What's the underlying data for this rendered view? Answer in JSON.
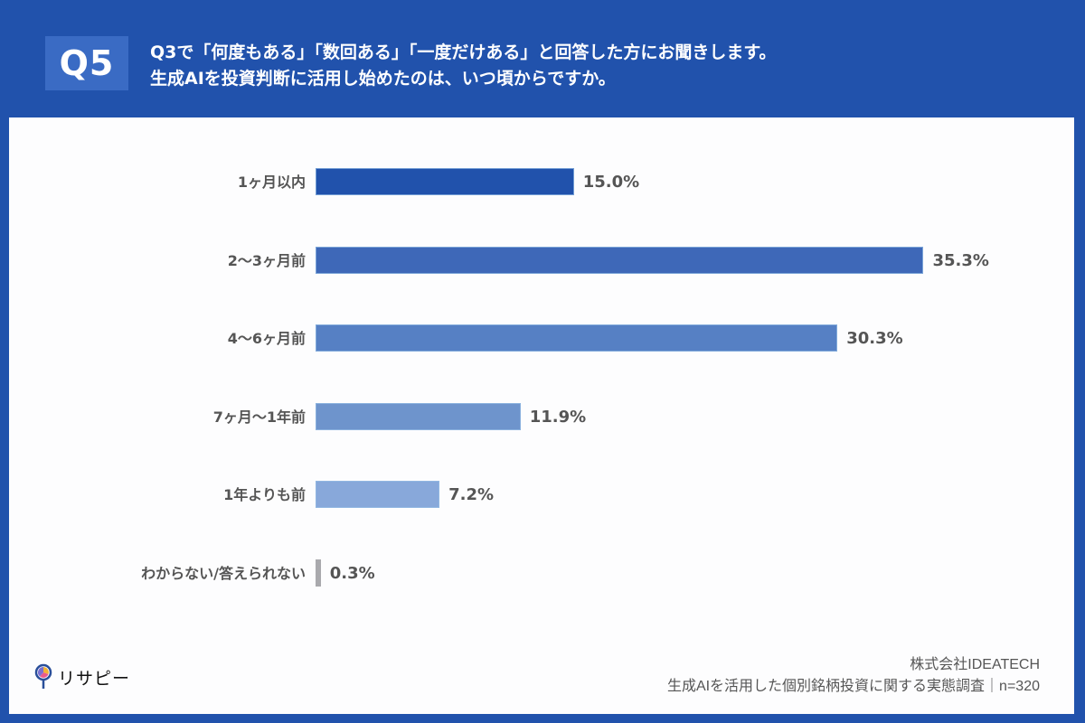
{
  "header": {
    "badge": "Q5",
    "question_line1": "Q3で「何度もある」「数回ある」「一度だけある」と回答した方にお聞きします。",
    "question_line2": "生成AIを投資判断に活用し始めたのは、いつ頃からですか。"
  },
  "chart_data": {
    "type": "bar",
    "orientation": "horizontal",
    "title": "生成AIを投資判断に活用し始めたのは、いつ頃からですか。",
    "xlabel": "",
    "ylabel": "",
    "unit": "%",
    "categories": [
      "1ヶ月以内",
      "2〜3ヶ月前",
      "4〜6ヶ月前",
      "7ヶ月〜1年前",
      "1年よりも前",
      "わからない/答えられない"
    ],
    "values": [
      15.0,
      35.3,
      30.3,
      11.9,
      7.2,
      0.3
    ],
    "value_labels": [
      "15.0%",
      "35.3%",
      "30.3%",
      "11.9%",
      "7.2%",
      "0.3%"
    ],
    "colors": [
      "#2152ac",
      "#3e68b8",
      "#5680c4",
      "#6e94cc",
      "#88a8da",
      "#a9a9ad"
    ],
    "grid": false,
    "legend": null
  },
  "footer": {
    "company": "株式会社IDEATECH",
    "survey": "生成AIを活用した個別銘柄投資に関する実態調査｜n=320"
  },
  "logo": {
    "text": "リサピー"
  }
}
